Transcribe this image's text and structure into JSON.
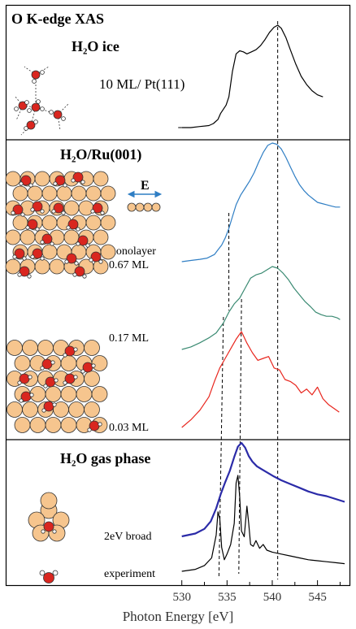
{
  "figure": {
    "title": "O K-edge XAS",
    "x_axis_label": "Photon Energy [eV]",
    "x_ticks": [
      530,
      535,
      540,
      545
    ],
    "xlim": [
      528.5,
      548.0
    ],
    "reference_lines_eV": [
      534.6,
      536.6,
      540.6
    ],
    "e_vector_label": "E",
    "colors": {
      "frame": "#000000",
      "ice": "#000000",
      "monolayer": "#2f7ec4",
      "ml017": "#3a8a72",
      "ml003": "#e8261e",
      "gas_broad": "#2b2ba8",
      "gas_experiment": "#000000",
      "ru_atom": "#f6c58e",
      "oxygen_atom": "#d9261f",
      "hydrogen_atom": "#ffffff",
      "e_arrow": "#2f7ec4"
    }
  },
  "panels": [
    {
      "title": "H₂O ice",
      "labels": [
        "10 ML/ Pt(111)"
      ]
    },
    {
      "title": "H₂O/Ru(001)",
      "labels": [
        "monolayer",
        "0.67 ML",
        "0.17 ML",
        "0.03 ML"
      ]
    },
    {
      "title": "H₂O gas phase",
      "labels": [
        "2eV broad",
        "experiment"
      ]
    }
  ],
  "chart_data": {
    "type": "line",
    "title": "O K-edge XAS",
    "xlabel": "Photon Energy [eV]",
    "ylabel": "",
    "xlim": [
      528.5,
      548.0
    ],
    "grid": false,
    "series": [
      {
        "name": "H2O ice 10 ML/ Pt(111)",
        "panel": 0,
        "color": "#000000",
        "x": [
          530.0,
          531.0,
          532.0,
          533.0,
          533.5,
          534.0,
          534.3,
          534.6,
          534.9,
          535.2,
          535.6,
          536.0,
          536.4,
          536.8,
          537.2,
          537.7,
          538.2,
          538.7,
          539.2,
          539.7,
          540.2,
          540.6,
          541.0,
          541.5,
          542.0,
          542.6,
          543.2,
          543.8,
          544.4,
          545.0,
          545.6
        ],
        "y": [
          0.0,
          0.0,
          0.01,
          0.02,
          0.04,
          0.08,
          0.14,
          0.18,
          0.22,
          0.3,
          0.55,
          0.72,
          0.75,
          0.74,
          0.72,
          0.74,
          0.76,
          0.8,
          0.86,
          0.93,
          0.98,
          1.0,
          0.97,
          0.88,
          0.76,
          0.62,
          0.5,
          0.42,
          0.36,
          0.32,
          0.3
        ]
      },
      {
        "name": "monolayer",
        "panel": 1,
        "color": "#2f7ec4",
        "x": [
          530.0,
          531.0,
          532.0,
          532.8,
          533.6,
          534.0,
          534.4,
          534.8,
          535.2,
          535.6,
          536.0,
          536.5,
          537.0,
          537.5,
          538.0,
          538.5,
          539.0,
          539.5,
          540.0,
          540.5,
          541.0,
          541.5,
          542.0,
          542.5,
          543.0,
          543.5,
          544.0,
          544.5,
          545.0,
          545.5,
          546.0,
          546.5,
          547.0,
          547.5
        ],
        "y": [
          0.0,
          0.01,
          0.02,
          0.03,
          0.06,
          0.1,
          0.14,
          0.2,
          0.28,
          0.38,
          0.48,
          0.56,
          0.62,
          0.68,
          0.75,
          0.84,
          0.92,
          0.98,
          1.0,
          0.99,
          0.95,
          0.88,
          0.8,
          0.72,
          0.65,
          0.6,
          0.56,
          0.53,
          0.5,
          0.49,
          0.48,
          0.47,
          0.46,
          0.46
        ]
      },
      {
        "name": "0.67 ML",
        "panel": 1,
        "color": "#3a8a72",
        "x": [
          530.0,
          531.0,
          532.0,
          533.0,
          533.8,
          534.6,
          535.2,
          535.8,
          536.4,
          537.0,
          537.6,
          538.2,
          538.8,
          539.4,
          540.0,
          540.6,
          541.2,
          541.8,
          542.4,
          543.0,
          543.6,
          544.2,
          544.8,
          545.4,
          546.0,
          546.6,
          547.2,
          547.5
        ],
        "y": [
          0.0,
          0.03,
          0.08,
          0.14,
          0.2,
          0.32,
          0.45,
          0.55,
          0.62,
          0.74,
          0.86,
          0.9,
          0.92,
          0.96,
          1.0,
          0.98,
          0.92,
          0.84,
          0.74,
          0.66,
          0.58,
          0.52,
          0.45,
          0.42,
          0.4,
          0.4,
          0.38,
          0.36
        ]
      },
      {
        "name": "0.03 ML",
        "panel": 1,
        "color": "#e8261e",
        "x": [
          530.0,
          531.0,
          532.0,
          533.0,
          533.6,
          534.2,
          534.8,
          535.4,
          536.0,
          536.6,
          537.2,
          537.8,
          538.4,
          539.0,
          539.6,
          540.2,
          540.8,
          541.4,
          542.0,
          542.6,
          543.2,
          543.8,
          544.4,
          545.0,
          545.6,
          546.2,
          546.8,
          547.4
        ],
        "y": [
          0.0,
          0.08,
          0.18,
          0.32,
          0.48,
          0.62,
          0.72,
          0.82,
          0.92,
          1.0,
          0.88,
          0.78,
          0.7,
          0.72,
          0.74,
          0.62,
          0.6,
          0.5,
          0.48,
          0.44,
          0.36,
          0.4,
          0.34,
          0.42,
          0.3,
          0.24,
          0.2,
          0.16
        ]
      },
      {
        "name": "2eV broad",
        "panel": 2,
        "color": "#2b2ba8",
        "x": [
          530.0,
          531.5,
          532.5,
          533.2,
          533.8,
          534.3,
          534.8,
          535.3,
          535.8,
          536.2,
          536.6,
          537.0,
          537.4,
          537.8,
          538.3,
          538.8,
          539.5,
          540.2,
          541.0,
          542.0,
          543.0,
          544.0,
          545.0,
          546.0,
          547.0,
          548.0
        ],
        "y": [
          0.0,
          0.03,
          0.08,
          0.16,
          0.3,
          0.45,
          0.58,
          0.7,
          0.85,
          0.96,
          1.0,
          0.95,
          0.86,
          0.8,
          0.75,
          0.72,
          0.68,
          0.64,
          0.6,
          0.56,
          0.52,
          0.48,
          0.45,
          0.43,
          0.4,
          0.37
        ]
      },
      {
        "name": "experiment",
        "panel": 2,
        "color": "#000000",
        "x": [
          530.0,
          531.5,
          532.5,
          533.3,
          533.8,
          534.0,
          534.2,
          534.4,
          534.7,
          535.0,
          535.4,
          535.8,
          536.0,
          536.2,
          536.4,
          536.6,
          536.9,
          537.2,
          537.4,
          537.6,
          537.9,
          538.2,
          538.6,
          539.0,
          539.4,
          540.0,
          541.0,
          542.0,
          543.0,
          544.0,
          545.0,
          546.0,
          547.0,
          548.0
        ],
        "y": [
          0.0,
          0.02,
          0.06,
          0.14,
          0.38,
          0.62,
          0.55,
          0.25,
          0.12,
          0.18,
          0.28,
          0.5,
          0.92,
          1.0,
          0.78,
          0.42,
          0.36,
          0.68,
          0.5,
          0.28,
          0.26,
          0.32,
          0.24,
          0.28,
          0.22,
          0.2,
          0.18,
          0.16,
          0.14,
          0.12,
          0.11,
          0.1,
          0.09,
          0.08
        ]
      }
    ]
  }
}
